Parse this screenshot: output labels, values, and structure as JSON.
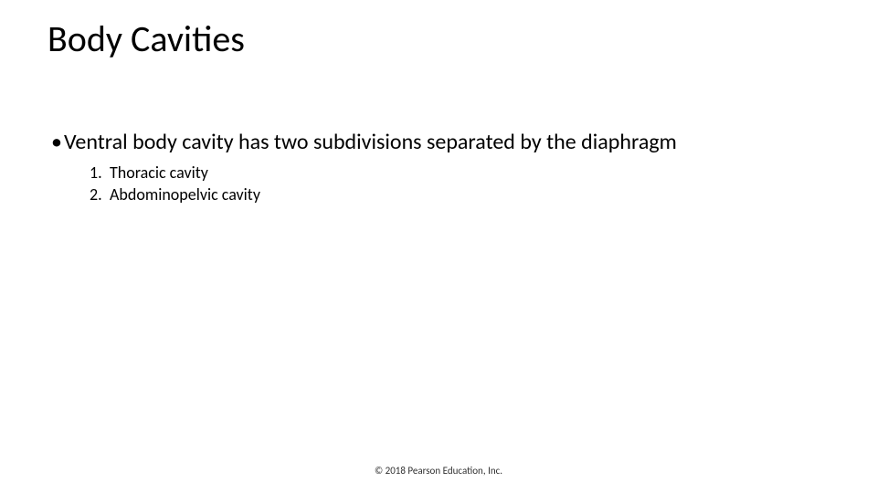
{
  "slide": {
    "title": "Body Cavities",
    "title_fontsize": 40,
    "title_color": "#000000",
    "background_color": "#ffffff",
    "bullet": {
      "marker": "•",
      "text": "Ventral body cavity has two subdivisions separated by the diaphragm",
      "fontsize": 24,
      "color": "#000000"
    },
    "numbered_list": {
      "fontsize": 18,
      "color": "#000000",
      "items": [
        {
          "num": "1.",
          "text": "Thoracic cavity"
        },
        {
          "num": "2.",
          "text": "Abdominopelvic cavity"
        }
      ]
    },
    "footer": {
      "text": "© 2018 Pearson Education, Inc.",
      "fontsize": 11,
      "color": "#303030"
    }
  }
}
